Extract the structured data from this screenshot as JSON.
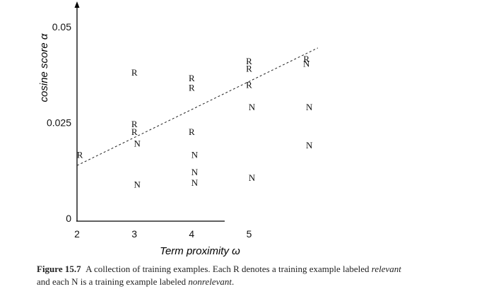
{
  "chart_data": {
    "type": "scatter",
    "xlabel": "Term proximity ω",
    "ylabel": "cosine score α",
    "xlim": [
      2,
      6.3
    ],
    "ylim": [
      0,
      0.05
    ],
    "xticks": [
      2,
      3,
      4,
      5
    ],
    "yticks": [
      {
        "value": 0,
        "label": "0"
      },
      {
        "value": 0.025,
        "label": "0.025"
      },
      {
        "value": 0.05,
        "label": "0.05"
      }
    ],
    "series": [
      {
        "name": "R",
        "points": [
          [
            2.05,
            0.0165
          ],
          [
            3.0,
            0.038
          ],
          [
            3.0,
            0.0245
          ],
          [
            3.0,
            0.0225
          ],
          [
            4.0,
            0.0365
          ],
          [
            4.0,
            0.034
          ],
          [
            4.0,
            0.0225
          ],
          [
            5.0,
            0.041
          ],
          [
            5.0,
            0.039
          ],
          [
            5.0,
            0.0348
          ],
          [
            6.0,
            0.0415
          ]
        ]
      },
      {
        "name": "N",
        "points": [
          [
            3.05,
            0.0195
          ],
          [
            3.05,
            0.0088
          ],
          [
            4.05,
            0.0165
          ],
          [
            4.05,
            0.012
          ],
          [
            4.05,
            0.0092
          ],
          [
            5.05,
            0.0105
          ],
          [
            5.05,
            0.029
          ],
          [
            6.0,
            0.0403
          ],
          [
            6.05,
            0.029
          ],
          [
            6.05,
            0.019
          ]
        ]
      }
    ],
    "decision_boundary": {
      "x1": 2.0,
      "y1": 0.0138,
      "x2": 6.2,
      "y2": 0.0445
    }
  },
  "caption": {
    "figure_label": "Figure 15.7",
    "text_1": "A collection of training examples. Each R denotes a training example labeled ",
    "relevant": "relevant",
    "text_2": "and each N is a training example labeled ",
    "nonrelevant": "nonrelevant",
    "text_3": "."
  }
}
